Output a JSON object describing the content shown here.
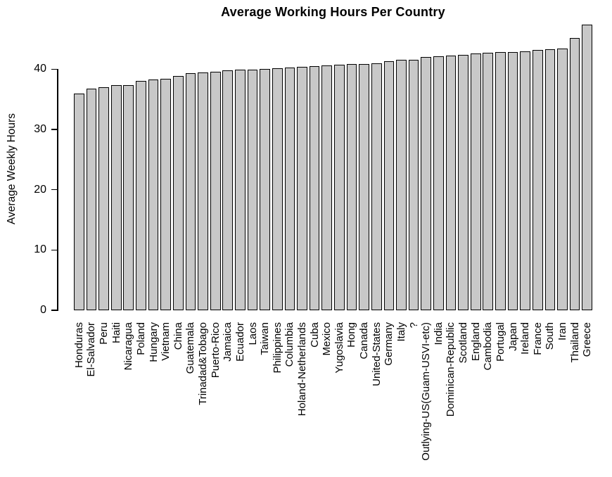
{
  "chart_data": {
    "type": "bar",
    "title": "Average Working Hours Per Country",
    "xlabel": "",
    "ylabel": "Average Weekly Hours",
    "categories": [
      "Honduras",
      "El-Salvador",
      "Peru",
      "Haiti",
      "Nicaragua",
      "Poland",
      "Hungary",
      "Vietnam",
      "China",
      "Guatemala",
      "Trinadad&Tobago",
      "Puerto-Rico",
      "Jamaica",
      "Ecuador",
      "Laos",
      "Taiwan",
      "Philippines",
      "Columbia",
      "Holand-Netherlands",
      "Cuba",
      "Mexico",
      "Yugoslavia",
      "Hong",
      "Canada",
      "United-States",
      "Germany",
      "Italy",
      "?",
      "Outlying-US(Guam-USVI-etc)",
      "India",
      "Dominican-Republic",
      "Scotland",
      "England",
      "Cambodia",
      "Portugal",
      "Japan",
      "Ireland",
      "France",
      "South",
      "Iran",
      "Thailand",
      "Greece"
    ],
    "values": [
      36.0,
      36.8,
      37.0,
      37.3,
      37.4,
      38.1,
      38.3,
      38.4,
      38.9,
      39.3,
      39.5,
      39.6,
      39.8,
      39.9,
      39.9,
      40.0,
      40.2,
      40.3,
      40.4,
      40.5,
      40.6,
      40.7,
      40.8,
      40.9,
      41.0,
      41.3,
      41.5,
      41.6,
      42.0,
      42.1,
      42.3,
      42.4,
      42.6,
      42.7,
      42.8,
      42.8,
      42.9,
      43.2,
      43.3,
      43.4,
      45.2,
      47.4
    ],
    "yticks": [
      0,
      10,
      20,
      30,
      40
    ],
    "ylim": [
      0,
      47.5
    ],
    "grid": "off",
    "legend": null,
    "bar_fill": "#c8c8c8",
    "bar_border": "#000000",
    "axis_color": "#000000",
    "text_color": "#000000",
    "background": "#ffffff"
  }
}
